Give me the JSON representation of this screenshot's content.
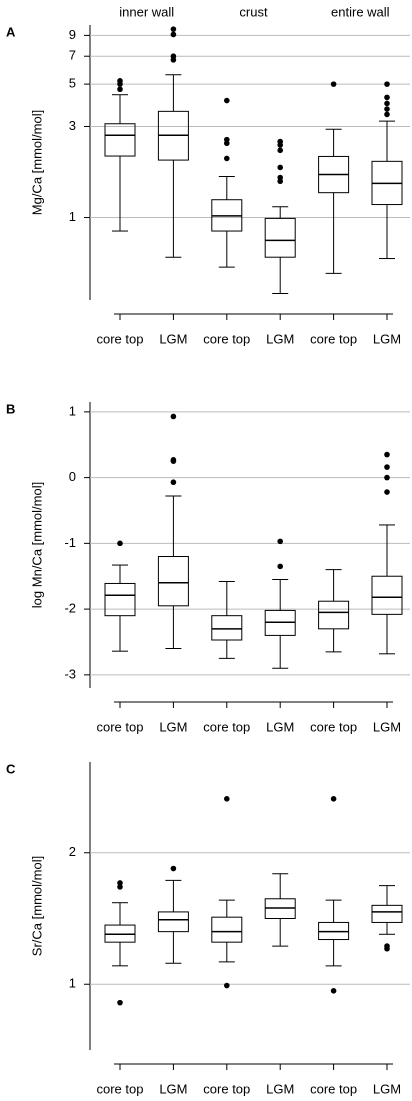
{
  "chart_data": [
    {
      "type": "box",
      "panel": "A",
      "ylabel": "Mg/Ca [mmol/mol]",
      "log_scale": true,
      "grid": true,
      "ylim": [
        0.37,
        10.2
      ],
      "yticks": [
        1,
        3,
        5,
        7,
        9
      ],
      "groups": [
        "inner wall",
        "crust",
        "entire wall"
      ],
      "categories": [
        "core top",
        "LGM",
        "core top",
        "LGM",
        "core top",
        "LGM"
      ],
      "boxes": [
        {
          "low": 0.85,
          "q1": 2.1,
          "median": 2.7,
          "q3": 3.1,
          "high": 4.4,
          "outliers": [
            4.7,
            5.0,
            5.2
          ]
        },
        {
          "low": 0.62,
          "q1": 2.0,
          "median": 2.7,
          "q3": 3.6,
          "high": 5.6,
          "outliers": [
            6.7,
            7.0,
            9.1,
            9.7
          ]
        },
        {
          "low": 0.55,
          "q1": 0.85,
          "median": 1.02,
          "q3": 1.24,
          "high": 1.64,
          "outliers": [
            2.04,
            2.45,
            2.56,
            4.1
          ]
        },
        {
          "low": 0.4,
          "q1": 0.62,
          "median": 0.76,
          "q3": 0.99,
          "high": 1.14,
          "outliers": [
            1.55,
            1.62,
            1.83,
            2.25,
            2.4,
            2.5
          ]
        },
        {
          "low": 0.51,
          "q1": 1.35,
          "median": 1.68,
          "q3": 2.09,
          "high": 2.9,
          "outliers": [
            5.0
          ]
        },
        {
          "low": 0.61,
          "q1": 1.17,
          "median": 1.51,
          "q3": 1.97,
          "high": 3.2,
          "outliers": [
            3.47,
            3.7,
            3.96,
            4.26,
            5.0
          ]
        }
      ]
    },
    {
      "type": "box",
      "panel": "B",
      "ylabel": "log Mn/Ca [mmol/mol]",
      "log_scale": false,
      "grid": true,
      "ylim": [
        -3.2,
        1.15
      ],
      "yticks": [
        -3,
        -2,
        -1,
        0,
        1
      ],
      "categories": [
        "core top",
        "LGM",
        "core top",
        "LGM",
        "core top",
        "LGM"
      ],
      "boxes": [
        {
          "low": -2.64,
          "q1": -2.1,
          "median": -1.79,
          "q3": -1.61,
          "high": -1.33,
          "outliers": [
            -1.0
          ]
        },
        {
          "low": -2.6,
          "q1": -1.95,
          "median": -1.6,
          "q3": -1.2,
          "high": -0.28,
          "outliers": [
            -0.07,
            0.25,
            0.27,
            0.93
          ]
        },
        {
          "low": -2.75,
          "q1": -2.47,
          "median": -2.3,
          "q3": -2.1,
          "high": -1.58,
          "outliers": []
        },
        {
          "low": -2.9,
          "q1": -2.4,
          "median": -2.2,
          "q3": -2.02,
          "high": -1.55,
          "outliers": [
            -1.35,
            -0.97
          ]
        },
        {
          "low": -2.65,
          "q1": -2.3,
          "median": -2.05,
          "q3": -1.88,
          "high": -1.4,
          "outliers": []
        },
        {
          "low": -2.68,
          "q1": -2.08,
          "median": -1.82,
          "q3": -1.5,
          "high": -0.72,
          "outliers": [
            -0.22,
            0.0,
            0.16,
            0.35
          ]
        }
      ]
    },
    {
      "type": "box",
      "panel": "C",
      "ylabel": "Sr/Ca [mmol/mol]",
      "log_scale": false,
      "grid": true,
      "ylim": [
        0.5,
        2.69
      ],
      "yticks": [
        1,
        2
      ],
      "categories": [
        "core top",
        "LGM",
        "core top",
        "LGM",
        "core top",
        "LGM"
      ],
      "boxes": [
        {
          "low": 1.14,
          "q1": 1.32,
          "median": 1.38,
          "q3": 1.45,
          "high": 1.62,
          "outliers": [
            0.86,
            1.74,
            1.77
          ]
        },
        {
          "low": 1.16,
          "q1": 1.4,
          "median": 1.49,
          "q3": 1.55,
          "high": 1.79,
          "outliers": [
            1.88
          ]
        },
        {
          "low": 1.17,
          "q1": 1.32,
          "median": 1.4,
          "q3": 1.51,
          "high": 1.64,
          "outliers": [
            0.99,
            2.41
          ]
        },
        {
          "low": 1.29,
          "q1": 1.5,
          "median": 1.58,
          "q3": 1.65,
          "high": 1.84,
          "outliers": []
        },
        {
          "low": 1.14,
          "q1": 1.34,
          "median": 1.4,
          "q3": 1.47,
          "high": 1.64,
          "outliers": [
            0.95,
            2.41
          ]
        },
        {
          "low": 1.38,
          "q1": 1.47,
          "median": 1.55,
          "q3": 1.6,
          "high": 1.75,
          "outliers": [
            1.27,
            1.29
          ]
        }
      ]
    }
  ]
}
